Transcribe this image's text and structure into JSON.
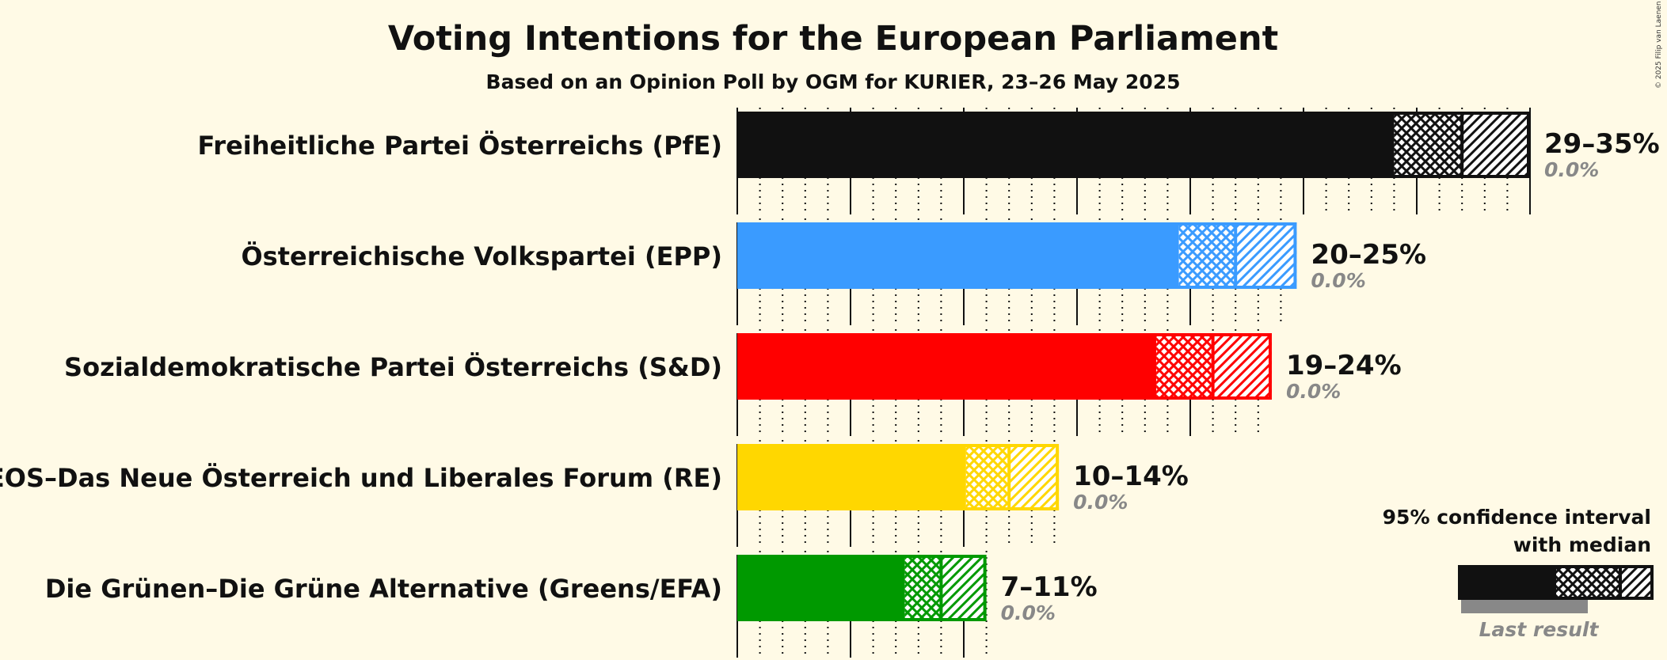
{
  "chart_data": {
    "type": "bar",
    "title": "Voting Intentions for the European Parliament",
    "subtitle": "Based on an Opinion Poll by OGM for KURIER, 23–26 May 2025",
    "copyright": "© 2025 Filip van Laenen",
    "xlim": [
      0,
      35
    ],
    "grid": true,
    "legend": {
      "position": "bottom-right",
      "title_line1": "95% confidence interval",
      "title_line2": "with median",
      "last_result_label": "Last result"
    },
    "series": [
      {
        "name": "Freiheitliche Partei Österreichs (PfE)",
        "color": "#111111",
        "ci_low": 29,
        "median": 32,
        "ci_high": 35,
        "range_label": "29–35%",
        "last_result": 0.0,
        "last_result_label": "0.0%"
      },
      {
        "name": "Österreichische Volkspartei (EPP)",
        "color": "#3a9bff",
        "ci_low": 19.5,
        "median": 22,
        "ci_high": 24.7,
        "range_label": "20–25%",
        "last_result": 0.0,
        "last_result_label": "0.0%"
      },
      {
        "name": "Sozialdemokratische Partei Österreichs (S&D)",
        "color": "#ff0000",
        "ci_low": 18.5,
        "median": 21,
        "ci_high": 23.6,
        "range_label": "19–24%",
        "last_result": 0.0,
        "last_result_label": "0.0%"
      },
      {
        "name": "NEOS–Das Neue Österreich und Liberales Forum (RE)",
        "color": "#ffd700",
        "ci_low": 10.1,
        "median": 12,
        "ci_high": 14.2,
        "range_label": "10–14%",
        "last_result": 0.0,
        "last_result_label": "0.0%"
      },
      {
        "name": "Die Grünen–Die Grüne Alternative (Greens/EFA)",
        "color": "#009900",
        "ci_low": 7.4,
        "median": 9,
        "ci_high": 11,
        "range_label": "7–11%",
        "last_result": 0.0,
        "last_result_label": "0.0%"
      }
    ]
  }
}
